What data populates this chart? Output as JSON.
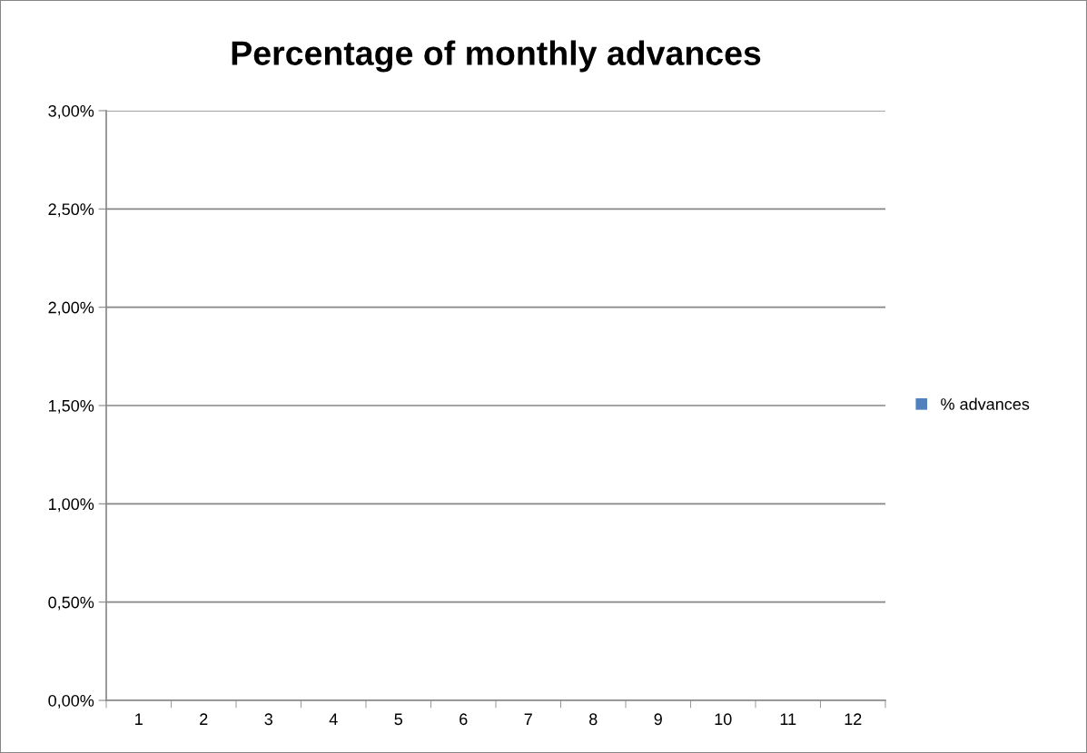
{
  "chart_data": {
    "type": "bar",
    "title": "Percentage of monthly advances",
    "categories": [
      "1",
      "2",
      "3",
      "4",
      "5",
      "6",
      "7",
      "8",
      "9",
      "10",
      "11",
      "12"
    ],
    "series": [
      {
        "name": "% advances",
        "color": "#4f81bd",
        "values": [
          null,
          null,
          null,
          null,
          null,
          null,
          null,
          null,
          null,
          null,
          null,
          null
        ]
      }
    ],
    "ylim": [
      0,
      3
    ],
    "yticks": [
      {
        "value": 0,
        "label": "0,00%"
      },
      {
        "value": 0.5,
        "label": "0,50%"
      },
      {
        "value": 1,
        "label": "1,00%"
      },
      {
        "value": 1.5,
        "label": "1,50%"
      },
      {
        "value": 2,
        "label": "2,00%"
      },
      {
        "value": 2.5,
        "label": "2,50%"
      },
      {
        "value": 3,
        "label": "3,00%"
      }
    ],
    "grid": "y",
    "legend": "right"
  }
}
